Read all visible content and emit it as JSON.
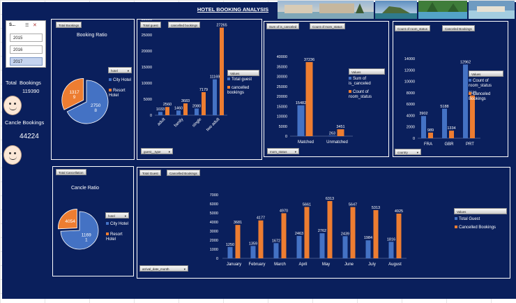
{
  "title": "HOTEL BOOKING ANALYSIS",
  "slicer": {
    "header": "S...",
    "items": [
      {
        "label": "2015",
        "selected": false
      },
      {
        "label": "2016",
        "selected": false
      },
      {
        "label": "2017",
        "selected": true
      }
    ]
  },
  "kpi": {
    "total_label": "Total  Bookings",
    "total_value": "119390",
    "cancel_label": "Cancle Bookings",
    "cancel_value": "44224"
  },
  "booking_ratio": {
    "button": "Total Bookings",
    "title": "Booking Ratio",
    "dropdown": "hotel",
    "legend": [
      "City Hotel",
      "Resort Hotel"
    ],
    "chart_data": {
      "type": "pie",
      "labels": [
        "City Hotel",
        "Resort Hotel"
      ],
      "values": [
        27508,
        13179
      ],
      "value_labels": [
        "2750\n8",
        "1317\n9"
      ],
      "colors": [
        "#4472c4",
        "#ed7d31"
      ]
    }
  },
  "guest_type": {
    "buttons": [
      "Total guest",
      "cancelled bookings"
    ],
    "legend_header": "Values",
    "legend": [
      "Total guest",
      "cancelled bookings"
    ],
    "dropdown": "guest__type",
    "chart_data": {
      "type": "bar",
      "categories": [
        "adult",
        "family",
        "single",
        "two adult"
      ],
      "series": [
        {
          "name": "Total guest",
          "values": [
            1033,
            1460,
            2080,
            11169
          ]
        },
        {
          "name": "cancelled bookings",
          "values": [
            2560,
            3683,
            7179,
            27265
          ]
        }
      ],
      "ylim": [
        0,
        30000
      ],
      "yticks": [
        0,
        5000,
        10000,
        15000,
        20000,
        25000,
        30000
      ],
      "ytick_labels": [
        "0",
        "5000",
        "10000",
        "15000",
        "20000",
        "25000",
        "30000"
      ],
      "colors": [
        "#4472c4",
        "#ed7d31"
      ]
    }
  },
  "mom_status": {
    "buttons": [
      "Sum of is_canceled",
      "Count of mom_status"
    ],
    "legend_header": "Values",
    "legend": [
      "Sum of is_canceled",
      "Count of room_status"
    ],
    "dropdown": "mom_status",
    "chart_data": {
      "type": "bar",
      "categories": [
        "Matched",
        "Unmatched"
      ],
      "series": [
        {
          "name": "Sum of is_canceled",
          "values": [
            15482,
            263
          ]
        },
        {
          "name": "Count of room_status",
          "values": [
            37236,
            3451
          ]
        }
      ],
      "ylim": [
        0,
        40000
      ],
      "yticks": [
        0,
        5000,
        10000,
        15000,
        20000,
        25000,
        30000,
        35000,
        40000
      ],
      "ytick_labels": [
        "0",
        "5000",
        "10000",
        "15000",
        "20000",
        "25000",
        "30000",
        "35000",
        "40000"
      ],
      "colors": [
        "#4472c4",
        "#ed7d31"
      ]
    }
  },
  "country": {
    "buttons": [
      "Count of room_status",
      "Canceled Bookings"
    ],
    "legend_header": "Values",
    "legend": [
      "Count of room_status",
      "Canceled Bookings"
    ],
    "dropdown": "country",
    "chart_data": {
      "type": "bar",
      "categories": [
        "FRA",
        "GBR",
        "PRT"
      ],
      "series": [
        {
          "name": "Count of room_status",
          "values": [
            3902,
            5188,
            12962
          ]
        },
        {
          "name": "Canceled Bookings",
          "values": [
            989,
            1334,
            7533
          ]
        }
      ],
      "ylim": [
        0,
        14000
      ],
      "yticks": [
        0,
        2000,
        4000,
        6000,
        8000,
        10000,
        12000,
        14000
      ],
      "ytick_labels": [
        "0",
        "2000",
        "4000",
        "6000",
        "8000",
        "10000",
        "12000",
        "14000"
      ],
      "colors": [
        "#4472c4",
        "#ed7d31"
      ]
    }
  },
  "cancel_ratio": {
    "button": "Total Cancellation",
    "title": "Cancle Ratio",
    "dropdown": "hotel",
    "legend": [
      "City Hotel",
      "Resort Hotel"
    ],
    "chart_data": {
      "type": "pie",
      "labels": [
        "City Hotel",
        "Resort Hotel"
      ],
      "values": [
        11691,
        4054
      ],
      "value_labels": [
        "1169\n1",
        "4054"
      ],
      "colors": [
        "#4472c4",
        "#ed7d31"
      ]
    }
  },
  "monthly": {
    "buttons": [
      "Total Guest",
      "Cancelled Bookings"
    ],
    "legend_header": "Values",
    "legend": [
      "Total Guest",
      "Cancelled Bookings"
    ],
    "dropdown": "arrival_date_month",
    "chart_data": {
      "type": "bar",
      "categories": [
        "January",
        "February",
        "March",
        "April",
        "May",
        "June",
        "July",
        "August"
      ],
      "series": [
        {
          "name": "Total Guest",
          "values": [
            1250,
            1359,
            1672,
            2463,
            2762,
            2439,
            1984,
            1816
          ]
        },
        {
          "name": "Cancelled Bookings",
          "values": [
            3681,
            4177,
            4970,
            5661,
            6313,
            5647,
            5313,
            4925
          ]
        }
      ],
      "ylim": [
        0,
        7000
      ],
      "yticks": [
        0,
        1000,
        2000,
        3000,
        4000,
        5000,
        6000,
        7000
      ],
      "ytick_labels": [
        "0",
        "1000",
        "2000",
        "3000",
        "4000",
        "5000",
        "6000",
        "7000"
      ],
      "colors": [
        "#4472c4",
        "#ed7d31"
      ]
    }
  }
}
